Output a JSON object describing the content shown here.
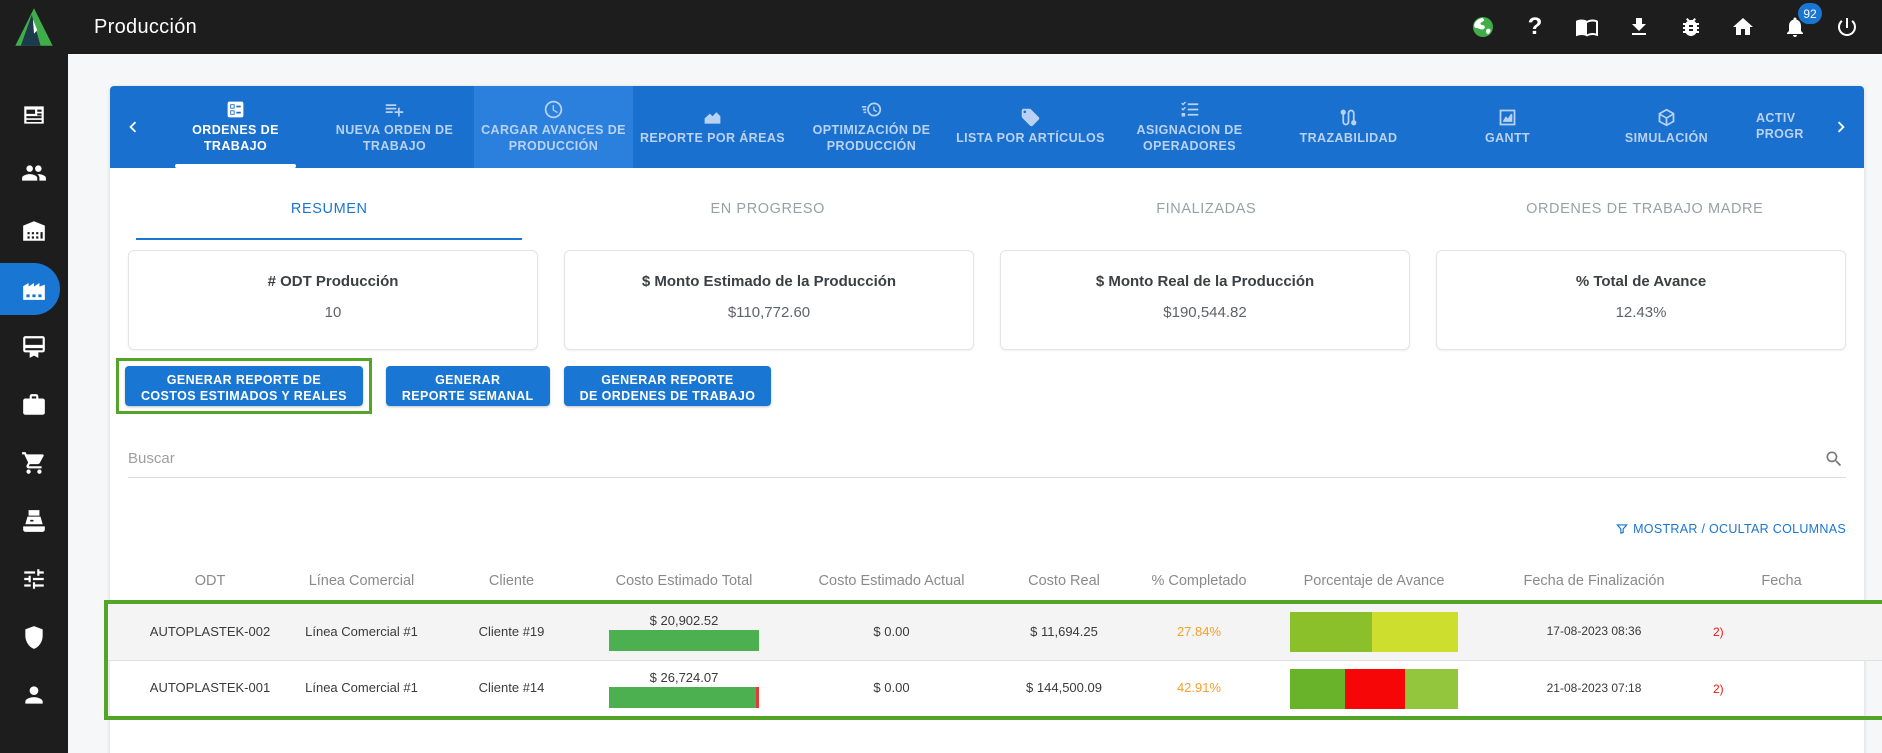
{
  "topbar": {
    "title": "Producción",
    "notification_badge": "92",
    "icons": [
      "globe-icon",
      "help-icon",
      "book-icon",
      "download-icon",
      "bug-icon",
      "home-icon",
      "bell-icon",
      "power-icon"
    ]
  },
  "sidebar": {
    "items": [
      {
        "icon": "newspaper-icon"
      },
      {
        "icon": "people-icon"
      },
      {
        "icon": "warehouse-icon"
      },
      {
        "icon": "factory-icon",
        "active": true
      },
      {
        "icon": "certificate-icon"
      },
      {
        "icon": "toolbox-icon"
      },
      {
        "icon": "cart-icon"
      },
      {
        "icon": "cash-register-icon"
      },
      {
        "icon": "sliders-icon"
      },
      {
        "icon": "shield-icon"
      },
      {
        "icon": "person-icon"
      }
    ]
  },
  "tabbar": {
    "tabs": [
      {
        "label": "ORDENES DE TRABAJO",
        "icon": "clipboard-list-icon",
        "active": true
      },
      {
        "label": "NUEVA ORDEN DE TRABAJO",
        "icon": "playlist-add-icon"
      },
      {
        "label": "CARGAR AVANCES DE PRODUCCIÓN",
        "icon": "clock-icon"
      },
      {
        "label": "REPORTE POR ÁREAS",
        "icon": "area-chart-icon"
      },
      {
        "label": "OPTIMIZACIÓN DE PRODUCCIÓN",
        "icon": "speed-clock-icon"
      },
      {
        "label": "LISTA POR ARTÍCULOS",
        "icon": "tag-icon"
      },
      {
        "label": "ASIGNACION DE OPERADORES",
        "icon": "checklist-icon"
      },
      {
        "label": "TRAZABILIDAD",
        "icon": "route-icon"
      },
      {
        "label": "GANTT",
        "icon": "gantt-chart-icon"
      },
      {
        "label": "SIMULACIÓN",
        "icon": "cube-icon"
      },
      {
        "label": "ACTIV PROGR",
        "icon": "",
        "clipped": true
      }
    ]
  },
  "subtabs": [
    {
      "label": "RESUMEN",
      "active": true
    },
    {
      "label": "EN PROGRESO"
    },
    {
      "label": "FINALIZADAS"
    },
    {
      "label": "ORDENES DE TRABAJO MADRE"
    }
  ],
  "kpi_cards": [
    {
      "title": "# ODT Producción",
      "value": "10"
    },
    {
      "title": "$ Monto Estimado de la Producción",
      "value": "$110,772.60"
    },
    {
      "title": "$ Monto Real de la Producción",
      "value": "$190,544.82"
    },
    {
      "title": "% Total de Avance",
      "value": "12.43%"
    }
  ],
  "action_buttons": [
    {
      "label": "GENERAR REPORTE DE\nCOSTOS ESTIMADOS Y REALES",
      "highlighted": true
    },
    {
      "label": "GENERAR\nREPORTE SEMANAL"
    },
    {
      "label": "GENERAR REPORTE\nDE ORDENES DE TRABAJO"
    }
  ],
  "search": {
    "placeholder": "Buscar"
  },
  "table": {
    "columns_toggle_label": "MOSTRAR / OCULTAR COLUMNAS",
    "headers": [
      "ODT",
      "Línea Comercial",
      "Cliente",
      "Costo Estimado Total",
      "Costo Estimado Actual",
      "Costo Real",
      "% Completado",
      "Porcentaje de Avance",
      "Fecha de Finalización",
      "Fecha"
    ],
    "rows": [
      {
        "odt": "AUTOPLASTEK-002",
        "linea_comercial": "Línea Comercial #1",
        "cliente": "Cliente #19",
        "costo_estimado_total": "$ 20,902.52",
        "costo_estimado_bar": [
          {
            "color": "#4caf50",
            "flex": 1
          }
        ],
        "costo_estimado_actual": "$ 0.00",
        "costo_real": "$ 11,694.25",
        "pct_completado": "27.84%",
        "avance_segments": [
          {
            "color": "#8cc02a",
            "flex": 66
          },
          {
            "color": "#cede2e",
            "flex": 70
          }
        ],
        "fecha_finalizacion": "17-08-2023 08:36",
        "fecha_partial": "2)"
      },
      {
        "odt": "AUTOPLASTEK-001",
        "linea_comercial": "Línea Comercial #1",
        "cliente": "Cliente #14",
        "costo_estimado_total": "$ 26,724.07",
        "costo_estimado_bar": [
          {
            "color": "#4caf50",
            "flex": 147
          },
          {
            "color": "#e53935",
            "flex": 3
          }
        ],
        "costo_estimado_actual": "$ 0.00",
        "costo_real": "$ 144,500.09",
        "pct_completado": "42.91%",
        "avance_segments": [
          {
            "color": "#68b32a",
            "flex": 50
          },
          {
            "color": "#f60606",
            "flex": 55
          },
          {
            "color": "#93c63c",
            "flex": 48
          }
        ],
        "fecha_finalizacion": "21-08-2023 07:18",
        "fecha_partial": "2)"
      }
    ]
  },
  "colors": {
    "topbar_bg": "#1d1d1d",
    "tabbar_blue": "#1a70cf",
    "accent_blue": "#1976d2",
    "annotation_green": "#54a427",
    "progress_green": "#4caf50",
    "warning_orange": "#f5a02a",
    "alert_red": "#f21616",
    "globe_green": "#3fae49"
  }
}
